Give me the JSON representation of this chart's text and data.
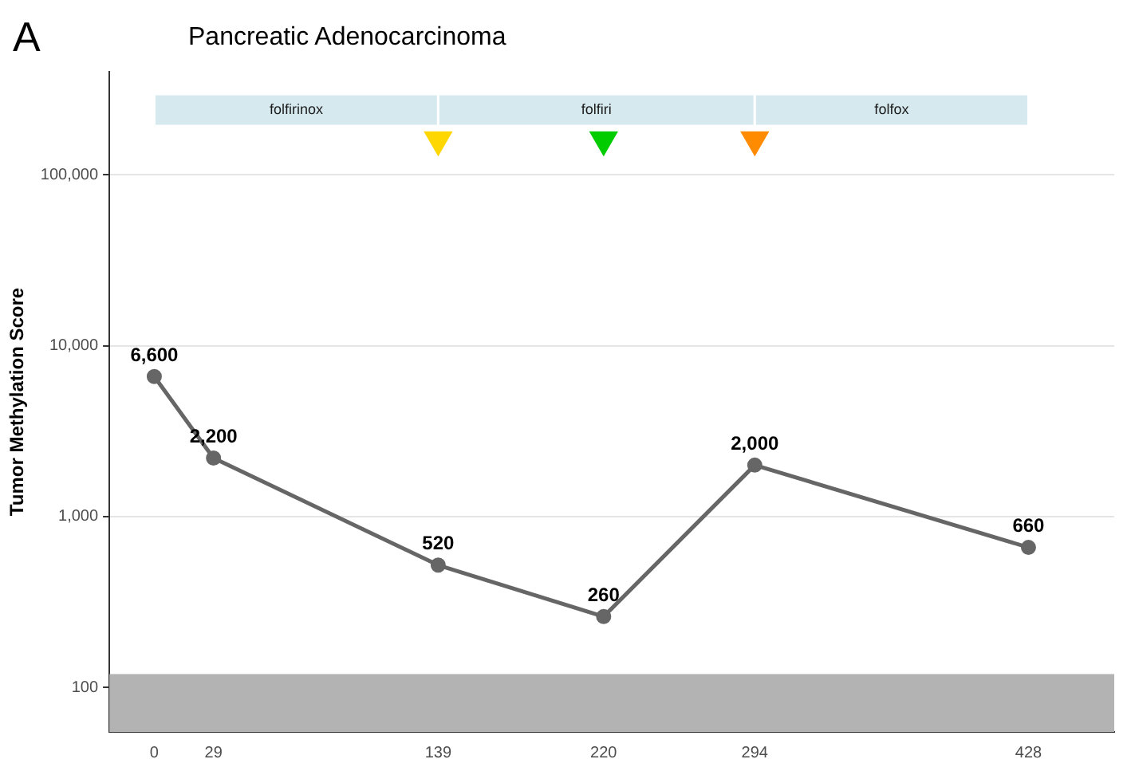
{
  "chart_data": {
    "type": "line",
    "title": "Pancreatic Adenocarcinoma",
    "ylabel": "Tumor Methylation Score",
    "annotations": [
      "A"
    ],
    "x": [
      0,
      29,
      139,
      220,
      294,
      428
    ],
    "series": [
      {
        "color": "#666666",
        "values": [
          6600,
          2200,
          520,
          260,
          2000,
          660
        ],
        "value_labels": [
          "6,600",
          "2,200",
          "520",
          "260",
          "2,000",
          "660"
        ]
      },
      {
        "type": "scatter",
        "marker": "triangle",
        "color": "#ffd700",
        "x": [
          139
        ],
        "values": [
          160000
        ]
      },
      {
        "type": "scatter",
        "marker": "triangle",
        "color": "#00cc00",
        "x": [
          220
        ],
        "values": [
          160000
        ]
      },
      {
        "type": "scatter",
        "marker": "triangle",
        "color": "#ff8c00",
        "x": [
          294
        ],
        "values": [
          160000
        ]
      }
    ],
    "xlim": [
      -22,
      470
    ],
    "xticks": [
      0,
      29,
      139,
      220,
      294,
      428
    ],
    "ylim": [
      55,
      400000
    ],
    "yticks": [
      {
        "value": 100,
        "label": "100"
      },
      {
        "value": 1000,
        "label": "1,000"
      },
      {
        "value": 10000,
        "label": "10,000"
      },
      {
        "value": 100000,
        "label": "100,000"
      }
    ],
    "log": "y",
    "grid": "y",
    "legend": false,
    "marker": "circle",
    "line_style": "solid",
    "bands": [
      {
        "axis": "y",
        "from": 55,
        "to": 120,
        "color": "#b3b3b3"
      },
      {
        "axis": "x",
        "from": 0,
        "to": 139,
        "label": "folfirinox",
        "color": "#d6e9ef"
      },
      {
        "axis": "x",
        "from": 139,
        "to": 294,
        "label": "folfiri",
        "color": "#d6e9ef"
      },
      {
        "axis": "x",
        "from": 294,
        "to": 428,
        "label": "folfox",
        "color": "#d6e9ef"
      }
    ]
  }
}
